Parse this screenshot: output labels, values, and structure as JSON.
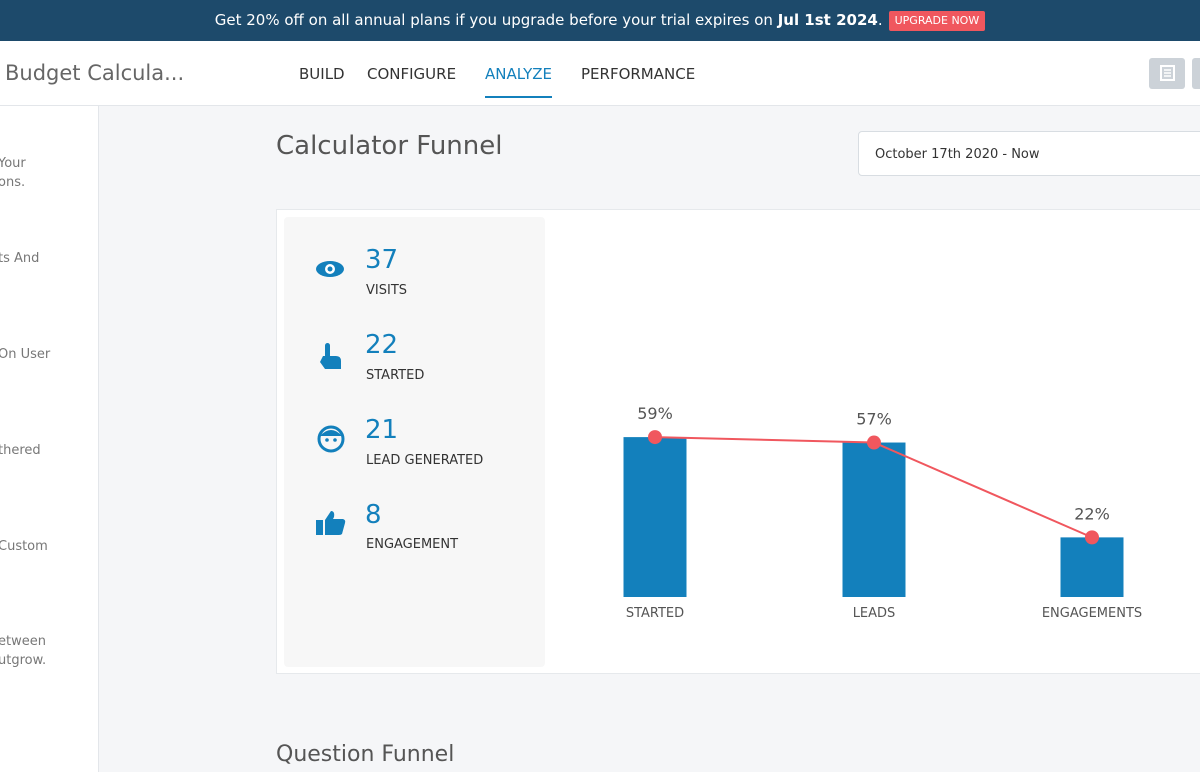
{
  "banner": {
    "text": "Get 20% off on all annual plans if you upgrade before your trial expires on ",
    "date": "Jul 1st 2024",
    "end": ".",
    "button": "UPGRADE NOW"
  },
  "header": {
    "title": "Budget Calcula...",
    "tabs": [
      "BUILD",
      "CONFIGURE",
      "ANALYZE",
      "PERFORMANCE"
    ]
  },
  "sidebar": {
    "items": [
      [
        "Your",
        "ons."
      ],
      [
        "ts And"
      ],
      [
        "On User"
      ],
      [
        "thered"
      ],
      [
        "Custom"
      ],
      [
        "etween",
        "utgrow."
      ]
    ]
  },
  "main": {
    "title": "Calculator Funnel",
    "date_range": "October 17th 2020 - Now",
    "next_section": "Question Funnel",
    "stats": [
      {
        "value": "37",
        "label": "VISITS"
      },
      {
        "value": "22",
        "label": "STARTED"
      },
      {
        "value": "21",
        "label": "LEAD GENERATED"
      },
      {
        "value": "8",
        "label": "ENGAGEMENT"
      }
    ]
  },
  "chart_data": {
    "type": "bar",
    "categories": [
      "STARTED",
      "LEADS",
      "ENGAGEMENTS"
    ],
    "values": [
      59,
      57,
      22
    ],
    "value_labels": [
      "59%",
      "57%",
      "22%"
    ],
    "color": "#1380bc",
    "line_color": "#f0575e"
  }
}
